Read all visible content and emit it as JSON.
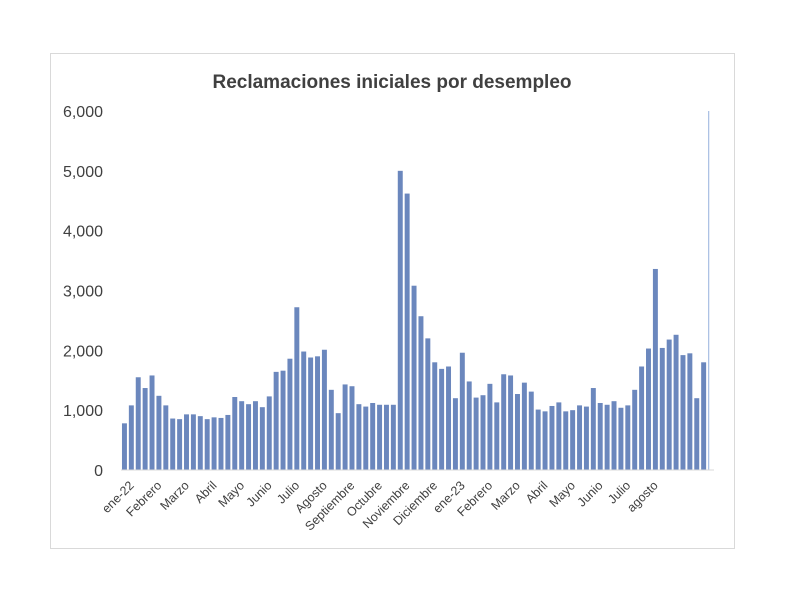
{
  "chart_data": {
    "type": "bar",
    "title": "Reclamaciones iniciales por desempleo",
    "xlabel": "",
    "ylabel": "",
    "ylim": [
      0,
      6000
    ],
    "yticks": [
      "0",
      "1,000",
      "2,000",
      "3,000",
      "4,000",
      "5,000",
      "6,000"
    ],
    "grid": false,
    "legend": "none",
    "bar_color": "#6b87bd",
    "month_labels": [
      {
        "label": "ene-22",
        "index": 0
      },
      {
        "label": "Febrero",
        "index": 4
      },
      {
        "label": "Marzo",
        "index": 8
      },
      {
        "label": "Abril",
        "index": 12
      },
      {
        "label": "Mayo",
        "index": 16
      },
      {
        "label": "Junio",
        "index": 20
      },
      {
        "label": "Julio",
        "index": 24
      },
      {
        "label": "Agosto",
        "index": 28
      },
      {
        "label": "Septiembre",
        "index": 32
      },
      {
        "label": "Octubre",
        "index": 36
      },
      {
        "label": "Noviembre",
        "index": 40
      },
      {
        "label": "Diciembre",
        "index": 44
      },
      {
        "label": "ene-23",
        "index": 48
      },
      {
        "label": "Febrero",
        "index": 52
      },
      {
        "label": "Marzo",
        "index": 56
      },
      {
        "label": "Abril",
        "index": 60
      },
      {
        "label": "Mayo",
        "index": 64
      },
      {
        "label": "Junio",
        "index": 68
      },
      {
        "label": "Julio",
        "index": 72
      },
      {
        "label": "agosto",
        "index": 76
      }
    ],
    "values": [
      780,
      1080,
      1550,
      1370,
      1580,
      1240,
      1080,
      860,
      850,
      930,
      930,
      900,
      850,
      880,
      870,
      920,
      1220,
      1150,
      1100,
      1150,
      1050,
      1230,
      1640,
      1660,
      1860,
      2720,
      1980,
      1880,
      1900,
      2010,
      1340,
      950,
      1430,
      1400,
      1100,
      1060,
      1120,
      1090,
      1090,
      1090,
      5000,
      4620,
      3080,
      2570,
      2200,
      1800,
      1690,
      1730,
      1200,
      1960,
      1480,
      1210,
      1250,
      1440,
      1130,
      1600,
      1580,
      1270,
      1460,
      1310,
      1010,
      980,
      1070,
      1130,
      980,
      1000,
      1080,
      1060,
      1370,
      1120,
      1090,
      1150,
      1040,
      1080,
      1340,
      1730,
      2030,
      3360,
      2040,
      2180,
      2260,
      1920,
      1950,
      1200,
      1800,
      6000
    ]
  }
}
